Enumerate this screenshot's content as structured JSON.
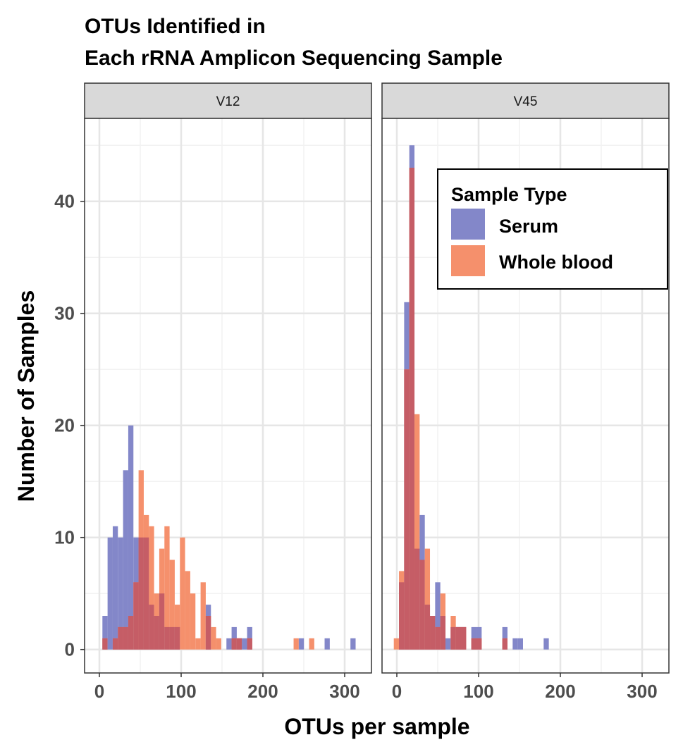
{
  "chart_data": {
    "type": "bar",
    "subtype": "overlaid histogram, faceted",
    "title_lines": [
      "OTUs Identified in",
      "Each rRNA Amplicon Sequencing Sample"
    ],
    "xlabel": "OTUs per sample",
    "ylabel": "Number of Samples",
    "xlim": [
      -10,
      330
    ],
    "ylim": [
      -2,
      47
    ],
    "x_ticks": [
      "0",
      "100",
      "200",
      "300"
    ],
    "x_tick_values": [
      0,
      100,
      200,
      300
    ],
    "y_ticks": [
      "0",
      "10",
      "20",
      "30",
      "40"
    ],
    "y_tick_values": [
      0,
      10,
      20,
      30,
      40
    ],
    "grid": true,
    "binwidth": 6.32,
    "legend": {
      "title": "Sample Type",
      "placement": "top-right",
      "entries": [
        {
          "name": "Serum",
          "color": "#8387c9"
        },
        {
          "name": "Whole blood",
          "color": "#f5906c"
        }
      ],
      "overlap_color": "#c55d66"
    },
    "panels": [
      {
        "name": "V12",
        "bin_start": 3.7,
        "series": [
          {
            "name": "Serum",
            "values": [
              3,
              10,
              11,
              10,
              16,
              20,
              10,
              10,
              10,
              4,
              3,
              5,
              2,
              2,
              2,
              0,
              0,
              0,
              0,
              0,
              4,
              0,
              0,
              0,
              1,
              2,
              1,
              1,
              2,
              0,
              0,
              0,
              0,
              0,
              0,
              0,
              0,
              0,
              1,
              0,
              0,
              0,
              0,
              1,
              0,
              0,
              0,
              0,
              1
            ]
          },
          {
            "name": "Whole blood",
            "values": [
              1,
              0,
              1,
              2,
              2,
              3,
              6,
              16,
              12,
              11,
              5,
              9,
              11,
              8,
              4,
              10,
              7,
              5,
              1,
              6,
              3,
              2,
              1,
              0,
              0,
              1,
              1,
              0,
              1,
              0,
              0,
              0,
              0,
              0,
              0,
              0,
              0,
              1,
              0,
              0,
              1,
              0,
              0,
              0,
              0,
              0,
              0,
              0,
              0
            ]
          }
        ]
      },
      {
        "name": "V45",
        "bin_start": -3.7,
        "series": [
          {
            "name": "Serum",
            "values": [
              0,
              6,
              31,
              45,
              9,
              12,
              4,
              3,
              6,
              3,
              1,
              2,
              2,
              2,
              0,
              2,
              2,
              0,
              0,
              0,
              0,
              2,
              0,
              1,
              1,
              0,
              0,
              0,
              0,
              1
            ]
          },
          {
            "name": "Whole blood",
            "values": [
              1,
              7,
              25,
              43,
              21,
              8,
              9,
              3,
              2,
              5,
              0,
              3,
              2,
              2,
              0,
              1,
              1,
              0,
              0,
              0,
              0,
              1,
              0,
              0,
              0,
              0,
              0,
              0,
              0,
              0
            ]
          }
        ]
      }
    ]
  }
}
